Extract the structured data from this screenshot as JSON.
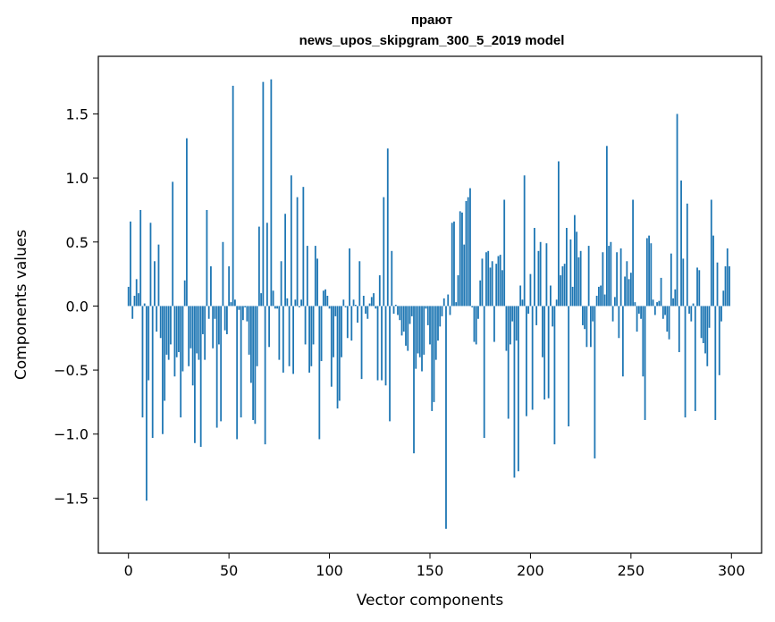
{
  "chart_data": {
    "type": "bar",
    "title_line1": "прают",
    "title_line2": "news_upos_skipgram_300_5_2019 model",
    "xlabel": "Vector components",
    "ylabel": "Components values",
    "xlim": [
      -15,
      315
    ],
    "ylim": [
      -1.93,
      1.95
    ],
    "xticks": [
      0,
      50,
      100,
      150,
      200,
      250,
      300
    ],
    "xtick_labels": [
      "0",
      "50",
      "100",
      "150",
      "200",
      "250",
      "300"
    ],
    "yticks": [
      -1.5,
      -1.0,
      -0.5,
      0.0,
      0.5,
      1.0,
      1.5
    ],
    "ytick_labels": [
      "−1.5",
      "−1.0",
      "−0.5",
      "0.0",
      "0.5",
      "1.0",
      "1.5"
    ],
    "grid": false,
    "bar_color": "#1f77b4",
    "x_start": 0,
    "values": [
      0.15,
      0.66,
      -0.1,
      0.08,
      0.21,
      0.1,
      0.75,
      -0.87,
      0.02,
      -1.52,
      -0.58,
      0.65,
      -1.03,
      0.35,
      -0.2,
      0.48,
      -0.25,
      -1.0,
      -0.74,
      -0.38,
      -0.42,
      -0.3,
      0.97,
      -0.55,
      -0.4,
      -0.36,
      -0.87,
      -0.51,
      0.2,
      1.31,
      -0.47,
      -0.33,
      -0.62,
      -1.07,
      -0.37,
      -0.42,
      -1.1,
      -0.22,
      -0.42,
      0.75,
      -0.1,
      0.31,
      -0.33,
      -0.1,
      -0.95,
      -0.3,
      -0.9,
      0.5,
      -0.19,
      -0.22,
      0.31,
      0.03,
      1.72,
      0.05,
      -1.04,
      -0.03,
      -0.87,
      -0.11,
      -0.01,
      -0.12,
      -0.38,
      -0.6,
      -0.89,
      -0.92,
      -0.47,
      0.62,
      0.1,
      1.75,
      -1.08,
      0.65,
      -0.32,
      1.77,
      0.12,
      -0.02,
      -0.02,
      -0.42,
      0.35,
      -0.52,
      0.72,
      0.06,
      -0.47,
      1.02,
      -0.53,
      0.05,
      0.85,
      -0.01,
      0.05,
      0.93,
      -0.3,
      0.47,
      -0.52,
      -0.47,
      -0.3,
      0.47,
      0.37,
      -1.04,
      -0.43,
      0.12,
      0.13,
      0.08,
      -0.02,
      -0.63,
      -0.4,
      -0.08,
      -0.8,
      -0.74,
      -0.4,
      0.05,
      -0.01,
      -0.25,
      0.45,
      -0.27,
      0.05,
      0.01,
      -0.13,
      0.35,
      -0.57,
      0.08,
      -0.06,
      -0.1,
      0.02,
      0.07,
      0.1,
      -0.02,
      -0.58,
      0.24,
      -0.58,
      0.85,
      -0.62,
      1.23,
      -0.9,
      0.43,
      -0.06,
      0.01,
      -0.07,
      -0.11,
      -0.23,
      -0.2,
      -0.31,
      -0.35,
      -0.14,
      -0.08,
      -1.15,
      -0.49,
      -0.37,
      -0.4,
      -0.51,
      -0.38,
      -0.02,
      -0.15,
      -0.3,
      -0.82,
      -0.75,
      -0.42,
      -0.27,
      -0.16,
      -0.08,
      0.06,
      -1.74,
      0.09,
      -0.07,
      0.65,
      0.66,
      0.03,
      0.24,
      0.74,
      0.73,
      0.48,
      0.82,
      0.85,
      0.92,
      -0.01,
      -0.28,
      -0.3,
      -0.1,
      0.2,
      0.37,
      -1.03,
      0.42,
      0.43,
      0.3,
      0.35,
      -0.28,
      0.33,
      0.39,
      0.4,
      0.28,
      0.83,
      -0.35,
      -0.88,
      -0.3,
      -0.12,
      -1.34,
      -0.27,
      -1.29,
      0.16,
      0.05,
      1.02,
      -0.86,
      -0.06,
      0.25,
      -0.81,
      0.61,
      -0.15,
      0.43,
      0.5,
      -0.4,
      -0.73,
      0.49,
      -0.72,
      0.16,
      -0.16,
      -1.08,
      0.05,
      1.13,
      0.24,
      0.31,
      0.33,
      0.61,
      -0.94,
      0.52,
      0.15,
      0.71,
      0.58,
      0.38,
      0.43,
      -0.15,
      -0.18,
      -0.32,
      0.47,
      -0.32,
      -0.12,
      -1.19,
      0.08,
      0.15,
      0.16,
      0.42,
      0.09,
      1.25,
      0.47,
      0.5,
      -0.12,
      0.07,
      0.42,
      -0.25,
      0.45,
      -0.55,
      0.23,
      0.35,
      0.21,
      0.26,
      0.83,
      0.03,
      -0.2,
      -0.06,
      -0.1,
      -0.55,
      -0.89,
      0.53,
      0.55,
      0.49,
      0.05,
      -0.07,
      0.03,
      0.04,
      0.22,
      -0.1,
      -0.07,
      -0.2,
      -0.26,
      0.41,
      0.06,
      0.13,
      1.5,
      -0.36,
      0.98,
      0.37,
      -0.87,
      0.8,
      -0.06,
      -0.12,
      0.02,
      -0.82,
      0.3,
      0.28,
      -0.25,
      -0.29,
      -0.37,
      -0.47,
      -0.17,
      0.83,
      0.55,
      -0.89,
      0.34,
      -0.54,
      -0.12,
      0.12,
      0.31,
      0.45,
      0.31
    ]
  }
}
